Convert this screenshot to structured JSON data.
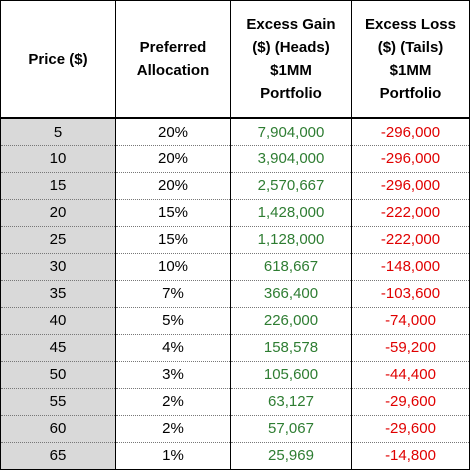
{
  "headers": {
    "price": [
      "Price ($)"
    ],
    "allocation": [
      "Preferred",
      "Allocation"
    ],
    "gain": [
      "Excess Gain",
      "($) (Heads)",
      "$1MM",
      "Portfolio"
    ],
    "loss": [
      "Excess Loss",
      "($) (Tails)",
      "$1MM",
      "Portfolio"
    ]
  },
  "colors": {
    "gain_text": "#2e7d32",
    "loss_text": "#e00000",
    "price_shading": "#d9d9d9"
  },
  "rows": [
    {
      "price": "5",
      "allocation": "20%",
      "gain": "7,904,000",
      "loss": "-296,000"
    },
    {
      "price": "10",
      "allocation": "20%",
      "gain": "3,904,000",
      "loss": "-296,000"
    },
    {
      "price": "15",
      "allocation": "20%",
      "gain": "2,570,667",
      "loss": "-296,000"
    },
    {
      "price": "20",
      "allocation": "15%",
      "gain": "1,428,000",
      "loss": "-222,000"
    },
    {
      "price": "25",
      "allocation": "15%",
      "gain": "1,128,000",
      "loss": "-222,000"
    },
    {
      "price": "30",
      "allocation": "10%",
      "gain": "618,667",
      "loss": "-148,000"
    },
    {
      "price": "35",
      "allocation": "7%",
      "gain": "366,400",
      "loss": "-103,600"
    },
    {
      "price": "40",
      "allocation": "5%",
      "gain": "226,000",
      "loss": "-74,000"
    },
    {
      "price": "45",
      "allocation": "4%",
      "gain": "158,578",
      "loss": "-59,200"
    },
    {
      "price": "50",
      "allocation": "3%",
      "gain": "105,600",
      "loss": "-44,400"
    },
    {
      "price": "55",
      "allocation": "2%",
      "gain": "63,127",
      "loss": "-29,600"
    },
    {
      "price": "60",
      "allocation": "2%",
      "gain": "57,067",
      "loss": "-29,600"
    },
    {
      "price": "65",
      "allocation": "1%",
      "gain": "25,969",
      "loss": "-14,800"
    }
  ]
}
